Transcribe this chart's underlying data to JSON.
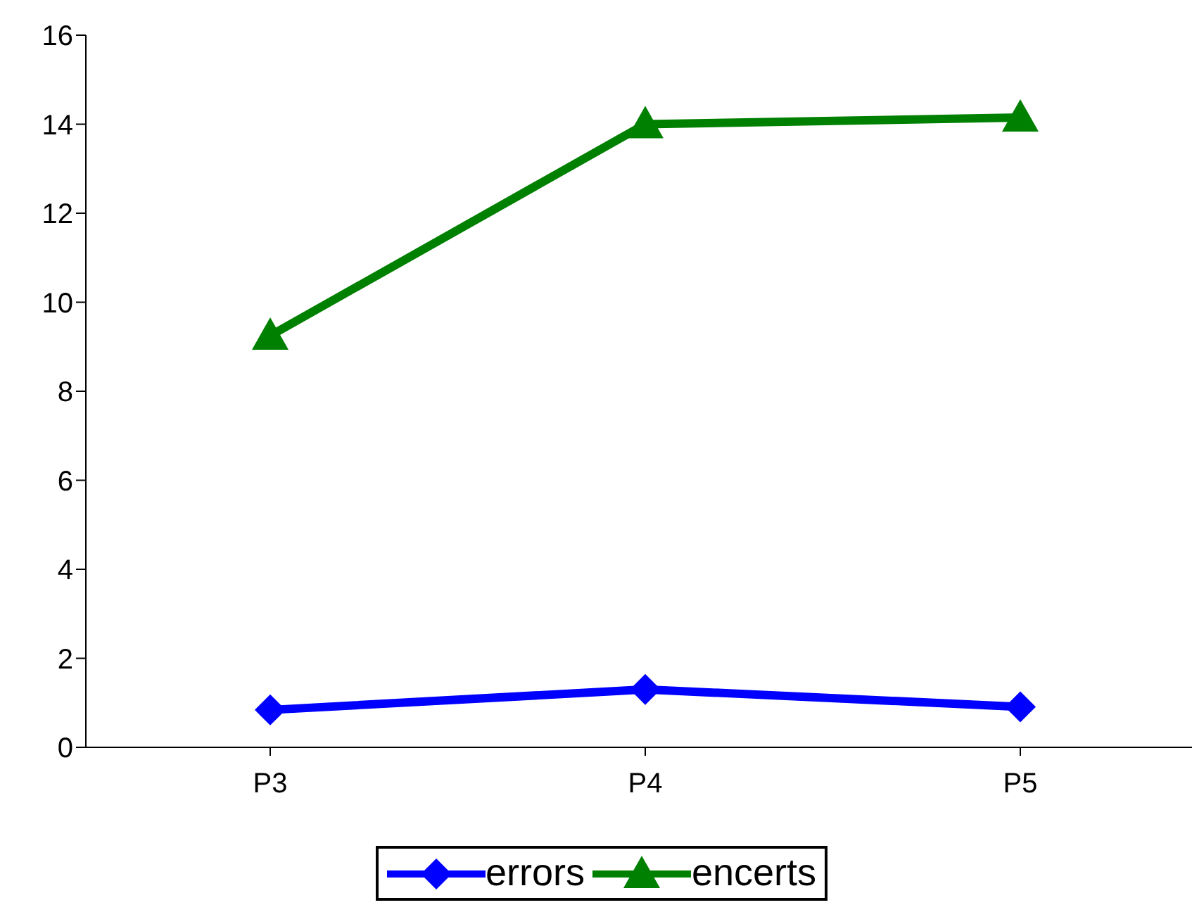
{
  "chart_data": {
    "type": "line",
    "categories": [
      "P3",
      "P4",
      "P5"
    ],
    "series": [
      {
        "name": "errors",
        "color": "#0000ff",
        "values": [
          0.84,
          1.3,
          0.91
        ],
        "marker": "diamond"
      },
      {
        "name": "encerts",
        "color": "#008000",
        "values": [
          9.25,
          14.0,
          14.15
        ],
        "marker": "triangle"
      }
    ],
    "ylim": [
      0,
      16
    ],
    "yticks": [
      0,
      2,
      4,
      6,
      8,
      10,
      12,
      14,
      16
    ],
    "grid": false,
    "legend": "bottom"
  }
}
